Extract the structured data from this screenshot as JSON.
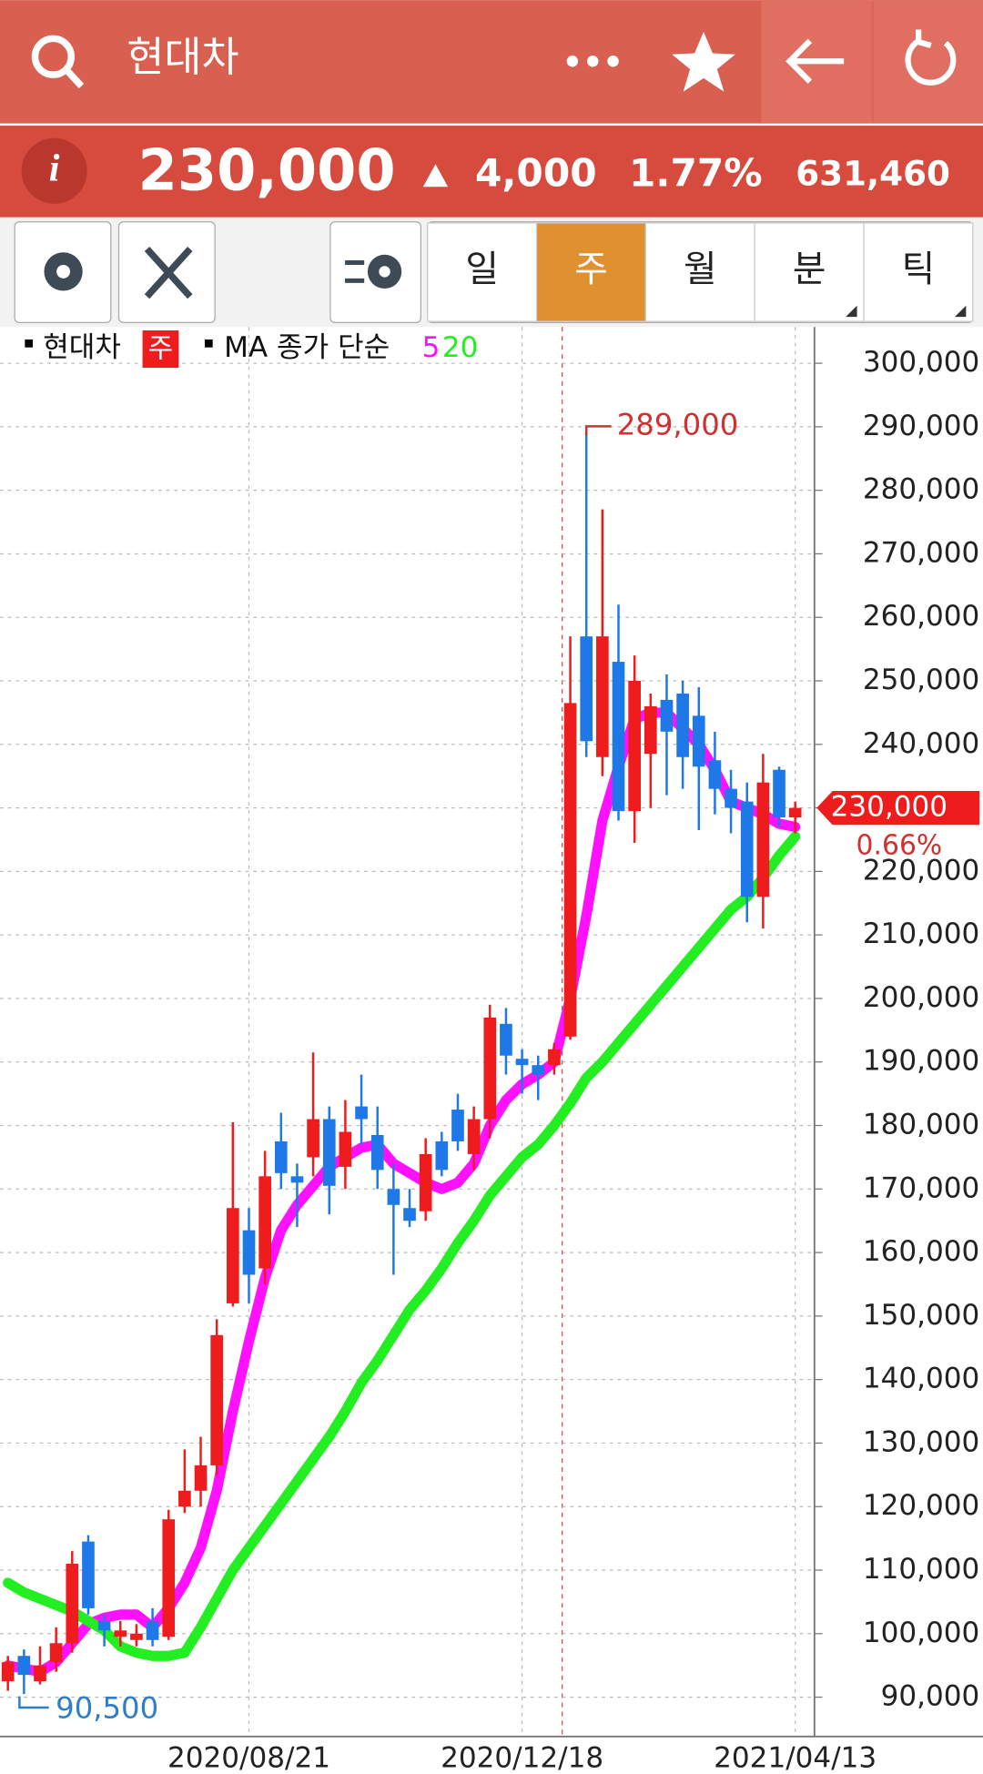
{
  "header": {
    "title": "현대차"
  },
  "quote": {
    "price": "230,000",
    "change": "4,000",
    "change_pct": "1.77%",
    "volume": "631,460"
  },
  "toolbar": {
    "periods": [
      "일",
      "주",
      "월",
      "분",
      "틱"
    ],
    "selected_index": 1
  },
  "legend": {
    "name": "현대차",
    "period": "주",
    "ma_label": "MA 종가 단순"
  },
  "chart_data": {
    "type": "candlestick",
    "categories": [
      null,
      null,
      null,
      null,
      null,
      null,
      null,
      null,
      null,
      null,
      null,
      null,
      null,
      null,
      null,
      "2020/08/21",
      null,
      null,
      null,
      null,
      null,
      null,
      null,
      null,
      null,
      null,
      null,
      null,
      null,
      null,
      null,
      null,
      "2020/12/18",
      null,
      null,
      null,
      null,
      null,
      null,
      null,
      null,
      null,
      null,
      null,
      null,
      null,
      null,
      null,
      null,
      "2021/04/13"
    ],
    "open": [
      92500,
      96500,
      92500,
      95500,
      98500,
      114500,
      102000,
      99500,
      99000,
      102000,
      99500,
      120000,
      122500,
      126500,
      152000,
      163500,
      157500,
      177500,
      172000,
      175000,
      181000,
      173500,
      183000,
      178500,
      170000,
      167000,
      166500,
      177500,
      182500,
      175500,
      181000,
      196000,
      190500,
      189500,
      189500,
      194000,
      257000,
      238000,
      253000,
      229500,
      238500,
      247000,
      248000,
      244500,
      237500,
      233000,
      231000,
      216000,
      236000,
      228500
    ],
    "high": [
      96500,
      97500,
      98000,
      101000,
      113000,
      115500,
      103000,
      102000,
      101500,
      104000,
      119500,
      129000,
      131000,
      149500,
      180500,
      167000,
      176000,
      182000,
      174000,
      191500,
      183000,
      184000,
      188000,
      183000,
      174000,
      170000,
      178000,
      179000,
      185000,
      183000,
      199000,
      198500,
      192000,
      191000,
      193000,
      257000,
      289000,
      277000,
      262000,
      254000,
      248000,
      251000,
      250000,
      249000,
      242000,
      236000,
      234000,
      238500,
      236500,
      231000
    ],
    "low": [
      91000,
      90500,
      92000,
      94000,
      97000,
      103000,
      98000,
      98000,
      98000,
      98000,
      99000,
      119000,
      120000,
      125000,
      151500,
      152000,
      155000,
      170000,
      164000,
      172000,
      166000,
      170000,
      177000,
      170000,
      156500,
      164000,
      165000,
      172000,
      176000,
      173000,
      178000,
      188000,
      185000,
      184000,
      188000,
      193500,
      238000,
      235000,
      228000,
      224500,
      230000,
      232000,
      233000,
      226500,
      229000,
      226000,
      212000,
      211000,
      227000,
      226000
    ],
    "close": [
      95500,
      93500,
      95000,
      98500,
      111000,
      104000,
      100500,
      100500,
      100000,
      99000,
      118000,
      122500,
      126500,
      147000,
      167000,
      156500,
      172000,
      172500,
      171000,
      181000,
      170500,
      179000,
      181000,
      173000,
      167500,
      165000,
      175500,
      173000,
      177500,
      181000,
      197000,
      191000,
      189500,
      188000,
      192000,
      246500,
      240500,
      257000,
      229500,
      250000,
      246000,
      242000,
      238000,
      236500,
      233000,
      230000,
      216000,
      234000,
      228500,
      230000
    ],
    "series": [
      {
        "name": "5",
        "color": "#ff10ff",
        "values": [
          95000,
          94500,
          94000,
          95500,
          98500,
          101500,
          102500,
          103000,
          103000,
          101000,
          104000,
          108000,
          113500,
          122500,
          135000,
          146000,
          156000,
          163500,
          167500,
          170500,
          173500,
          175000,
          176500,
          177000,
          174000,
          172500,
          171000,
          170000,
          171000,
          174000,
          180000,
          184000,
          186500,
          188000,
          190000,
          200000,
          213000,
          228000,
          236500,
          244000,
          245000,
          245000,
          242500,
          240000,
          236000,
          231000,
          230000,
          229000,
          227500,
          227000
        ]
      },
      {
        "name": "20",
        "color": "#22ee22",
        "values": [
          108000,
          106500,
          105500,
          104500,
          103500,
          102000,
          100500,
          98000,
          97000,
          96500,
          96500,
          97000,
          101000,
          105500,
          110000,
          113500,
          117000,
          120500,
          124000,
          127500,
          131000,
          135000,
          139500,
          143000,
          147000,
          151000,
          154000,
          157500,
          161500,
          165000,
          169000,
          172000,
          175000,
          177000,
          180000,
          183500,
          187500,
          190000,
          193000,
          196000,
          199000,
          202000,
          205000,
          208000,
          211000,
          214000,
          216000,
          219000,
          222500,
          225500
        ]
      }
    ],
    "up_color": "#ee1c1c",
    "down_color": "#1f78e8",
    "ylim": [
      83800,
      305700
    ],
    "yticks": [
      {
        "value": 90000,
        "label": "90,000"
      },
      {
        "value": 100000,
        "label": "100,000"
      },
      {
        "value": 110000,
        "label": "110,000"
      },
      {
        "value": 120000,
        "label": "120,000"
      },
      {
        "value": 130000,
        "label": "130,000"
      },
      {
        "value": 140000,
        "label": "140,000"
      },
      {
        "value": 150000,
        "label": "150,000"
      },
      {
        "value": 160000,
        "label": "160,000"
      },
      {
        "value": 170000,
        "label": "170,000"
      },
      {
        "value": 180000,
        "label": "180,000"
      },
      {
        "value": 190000,
        "label": "190,000"
      },
      {
        "value": 200000,
        "label": "200,000"
      },
      {
        "value": 210000,
        "label": "210,000"
      },
      {
        "value": 220000,
        "label": "220,000"
      },
      {
        "value": 230000,
        "label": "230,000"
      },
      {
        "value": 240000,
        "label": "240,000"
      },
      {
        "value": 250000,
        "label": "250,000"
      },
      {
        "value": 260000,
        "label": "260,000"
      },
      {
        "value": 270000,
        "label": "270,000"
      },
      {
        "value": 280000,
        "label": "280,000"
      },
      {
        "value": 290000,
        "label": "290,000"
      },
      {
        "value": 300000,
        "label": "300,000"
      }
    ],
    "grid": true,
    "max_label": {
      "value": 289000,
      "label": "289,000"
    },
    "min_label": {
      "value": 90500,
      "label": "90,500"
    },
    "last_label": {
      "value": 230000,
      "label": "230,000"
    },
    "last_change": {
      "value": 0.66,
      "label": "0.66%"
    }
  }
}
